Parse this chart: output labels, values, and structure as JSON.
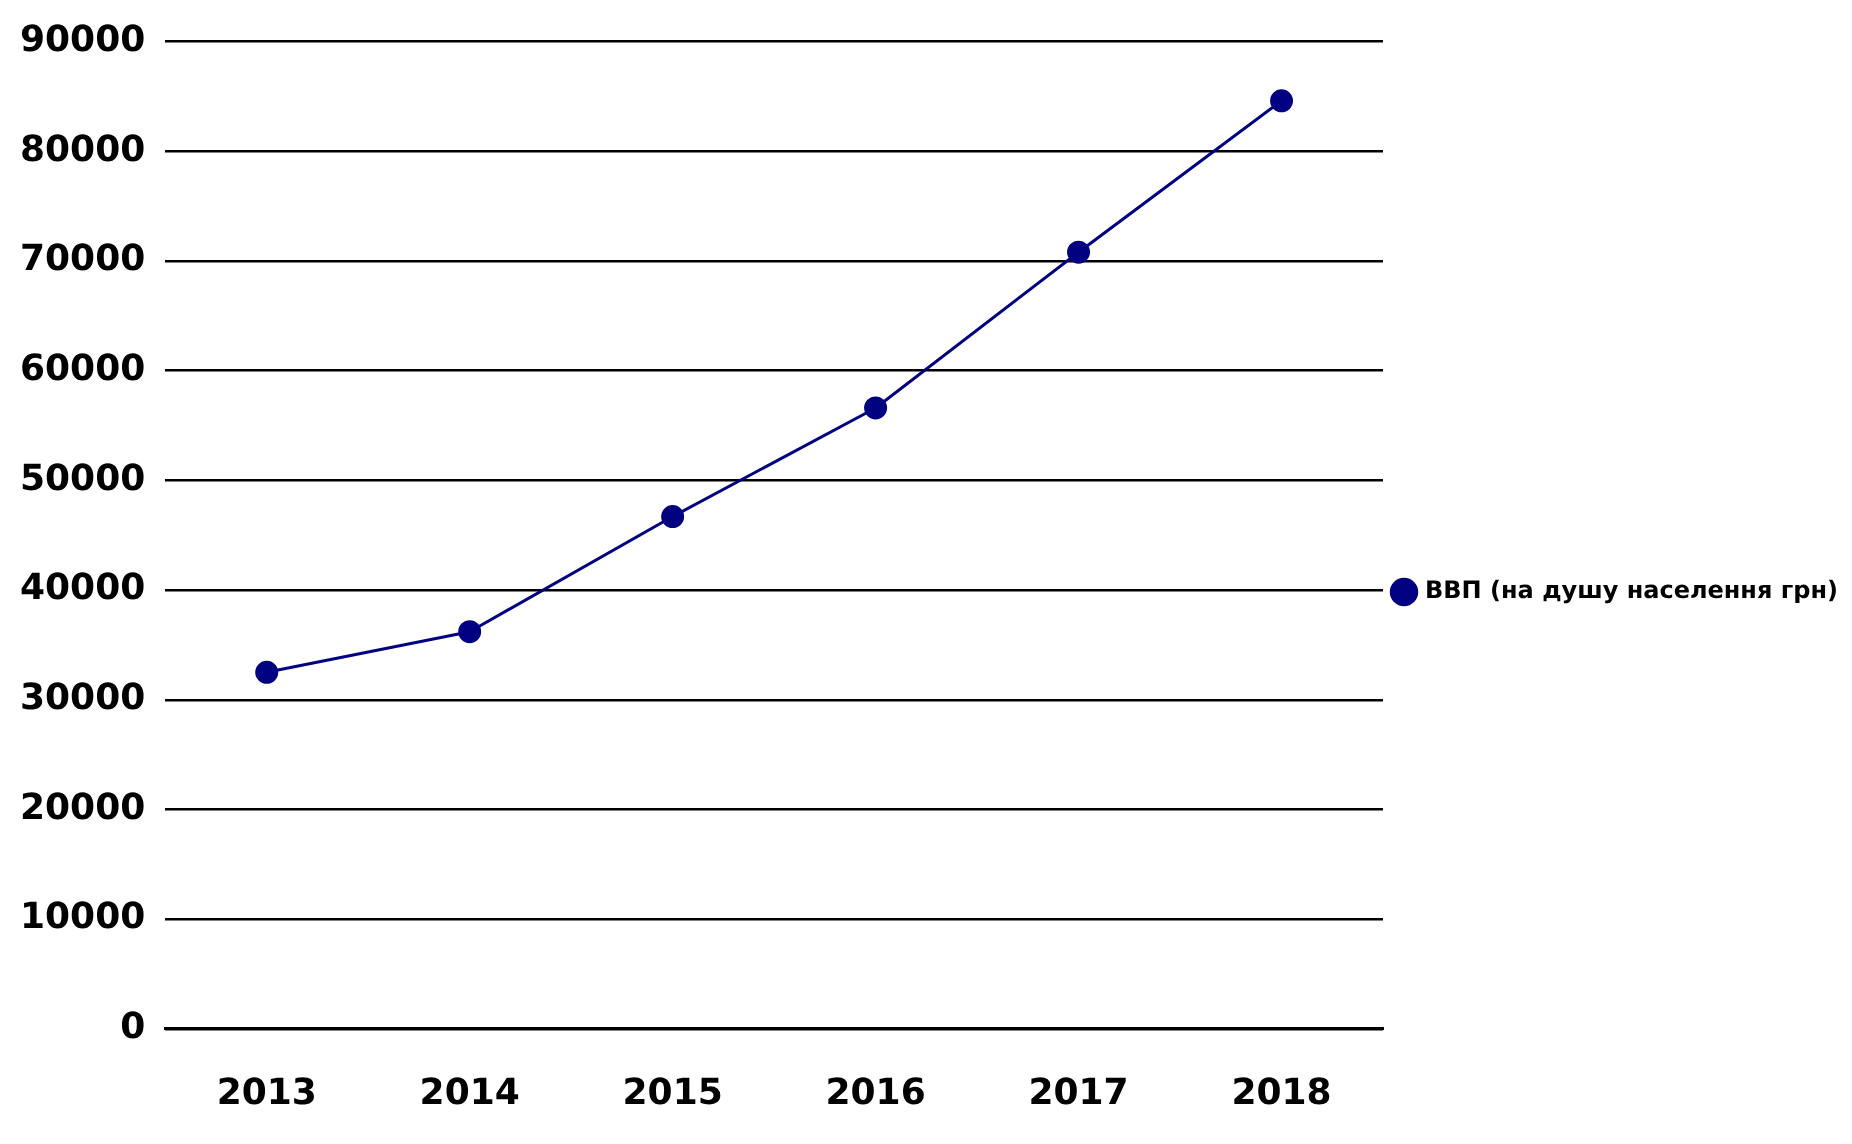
{
  "chart_data": {
    "type": "line",
    "categories": [
      "2013",
      "2014",
      "2015",
      "2016",
      "2017",
      "2018"
    ],
    "series": [
      {
        "name": "ВВП (на душу населення грн)",
        "color": "#000080",
        "values": [
          32500,
          36200,
          46700,
          56600,
          70800,
          84600
        ]
      }
    ],
    "ylim": [
      0,
      90000
    ],
    "yticks": [
      0,
      10000,
      20000,
      30000,
      40000,
      50000,
      60000,
      70000,
      80000,
      90000
    ],
    "grid": "y",
    "legend": "right",
    "marker": "circle",
    "line_style": "solid"
  }
}
